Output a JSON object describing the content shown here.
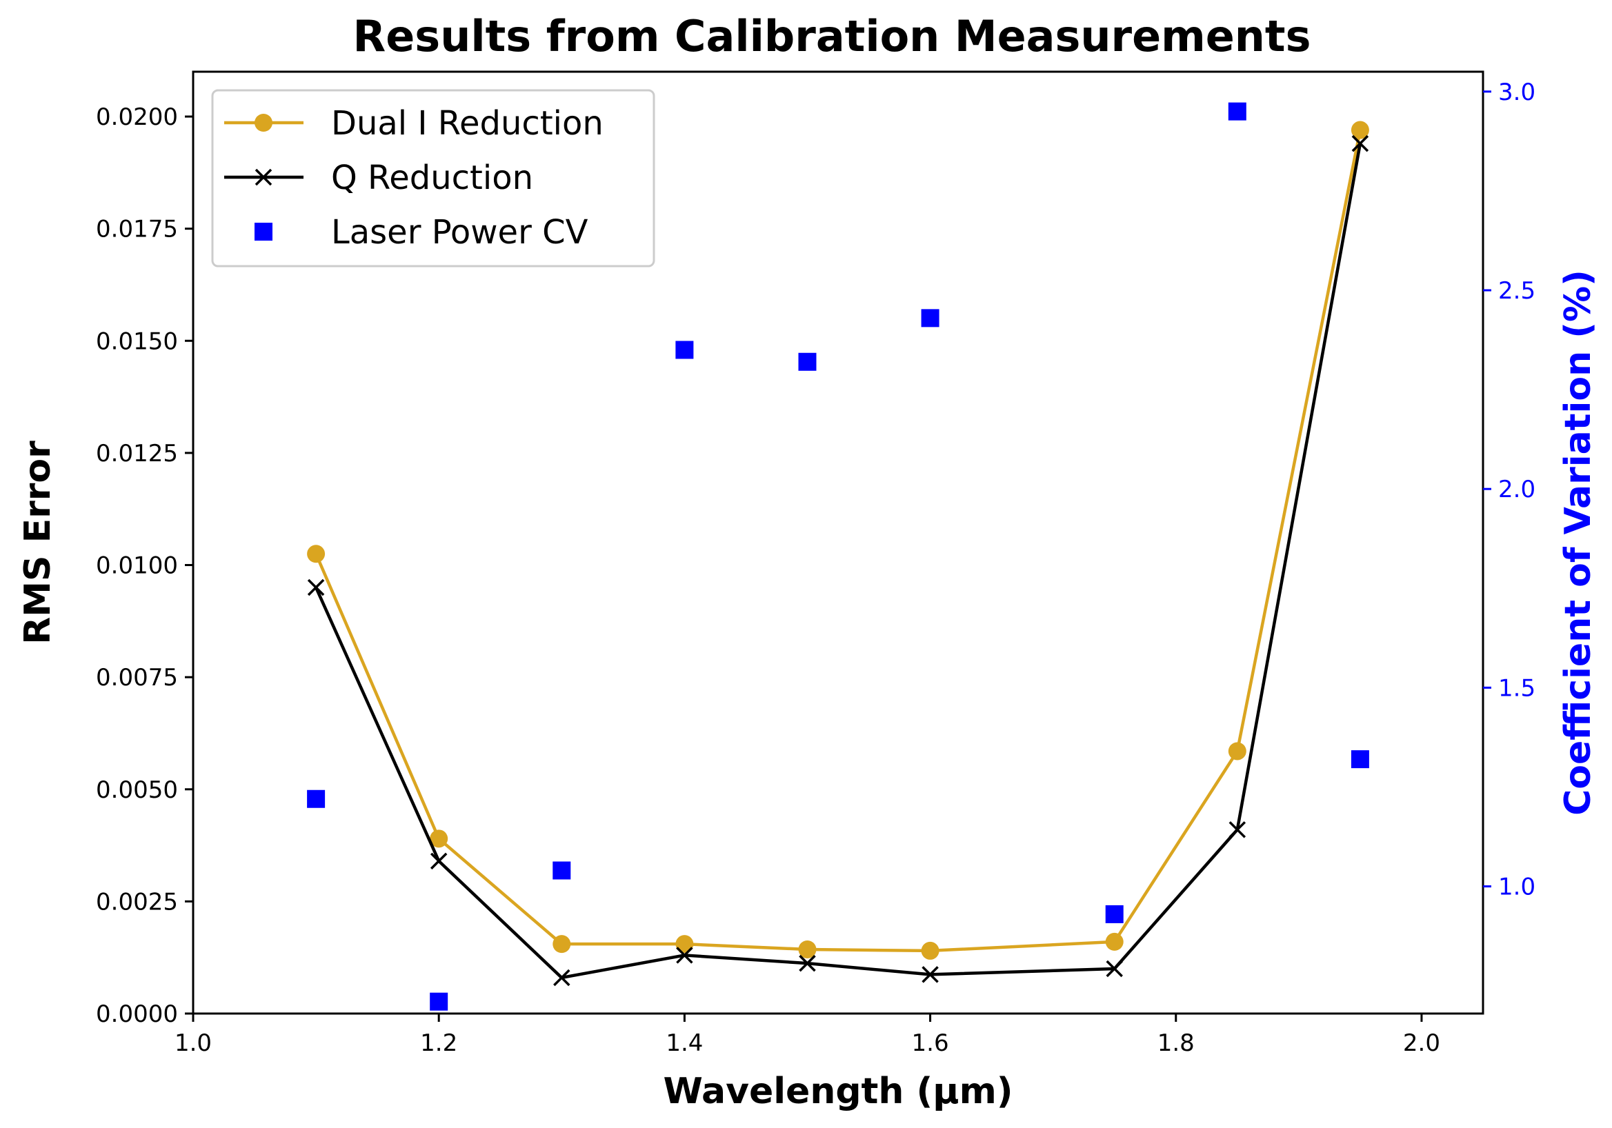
{
  "chart_data": {
    "type": "line",
    "title": "Results from Calibration Measurements",
    "xlabel": "Wavelength (µm)",
    "ylabel": "RMS Error",
    "y2label": "Coefficient of Variation (%)",
    "xlim": [
      1.0,
      2.05
    ],
    "ylim": [
      0.0,
      0.021
    ],
    "y2lim": [
      0.68,
      3.05
    ],
    "x_ticks": [
      "1.0",
      "1.2",
      "1.4",
      "1.6",
      "1.8",
      "2.0"
    ],
    "x_tick_values": [
      1.0,
      1.2,
      1.4,
      1.6,
      1.8,
      2.0
    ],
    "y_ticks": [
      "0.0000",
      "0.0025",
      "0.0050",
      "0.0075",
      "0.0100",
      "0.0125",
      "0.0150",
      "0.0175",
      "0.0200"
    ],
    "y_tick_values": [
      0.0,
      0.0025,
      0.005,
      0.0075,
      0.01,
      0.0125,
      0.015,
      0.0175,
      0.02
    ],
    "y2_ticks": [
      "1.0",
      "1.5",
      "2.0",
      "2.5",
      "3.0"
    ],
    "y2_tick_values": [
      1.0,
      1.5,
      2.0,
      2.5,
      3.0
    ],
    "grid": false,
    "legend_position": "top-left",
    "x": [
      1.1,
      1.2,
      1.3,
      1.4,
      1.5,
      1.6,
      1.75,
      1.85,
      1.95
    ],
    "series": [
      {
        "name": "Dual I Reduction",
        "axis": "left",
        "style": "line-circle",
        "color": "#daa520",
        "values": [
          0.01025,
          0.0039,
          0.00155,
          0.00155,
          0.00143,
          0.0014,
          0.0016,
          0.00585,
          0.0197
        ]
      },
      {
        "name": "Q Reduction",
        "axis": "left",
        "style": "line-x",
        "color": "#000000",
        "values": [
          0.0095,
          0.0034,
          0.0008,
          0.0013,
          0.00112,
          0.00087,
          0.001,
          0.0041,
          0.0194
        ]
      },
      {
        "name": "Laser Power CV",
        "axis": "right",
        "style": "square",
        "color": "#0000ff",
        "values": [
          1.22,
          0.71,
          1.04,
          2.35,
          2.32,
          2.43,
          0.93,
          2.95,
          1.32
        ]
      }
    ]
  }
}
